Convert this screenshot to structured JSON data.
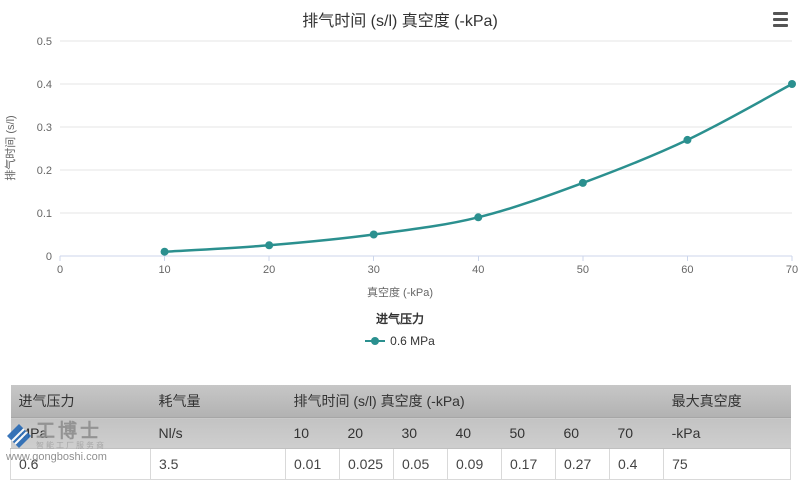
{
  "chart_data": {
    "type": "line",
    "title": "排气时间 (s/l) 真空度 (-kPa)",
    "xlabel": "真空度 (-kPa)",
    "ylabel": "排气时间 (s/l)",
    "x": [
      10,
      20,
      30,
      40,
      50,
      60,
      70
    ],
    "series": [
      {
        "name": "0.6 MPa",
        "color": "#2b908f",
        "values": [
          0.01,
          0.025,
          0.05,
          0.09,
          0.17,
          0.27,
          0.4
        ]
      }
    ],
    "xlim": [
      0,
      70
    ],
    "ylim": [
      0,
      0.5
    ],
    "xticks": [
      0,
      10,
      20,
      30,
      40,
      50,
      60,
      70
    ],
    "yticks": [
      0,
      0.1,
      0.2,
      0.3,
      0.4,
      0.5
    ],
    "grid": "horizontal",
    "legend": {
      "title": "进气压力",
      "position": "bottom"
    }
  },
  "header": {
    "menu_icon": "hamburger-menu-icon"
  },
  "table": {
    "header_row1": [
      "进气压力",
      "耗气量",
      "排气时间 (s/l) 真空度 (-kPa)",
      "最大真空度"
    ],
    "header_row2": [
      "MPa",
      "Nl/s",
      "10",
      "20",
      "30",
      "40",
      "50",
      "60",
      "70",
      "-kPa"
    ],
    "body_row": [
      "0.6",
      "3.5",
      "0.01",
      "0.025",
      "0.05",
      "0.09",
      "0.17",
      "0.27",
      "0.4",
      "75"
    ]
  },
  "watermark": {
    "brand": "工博士",
    "tagline": "智能工厂服务商",
    "url": "www.gongboshi.com",
    "logo_color": "#2a6bb5"
  }
}
